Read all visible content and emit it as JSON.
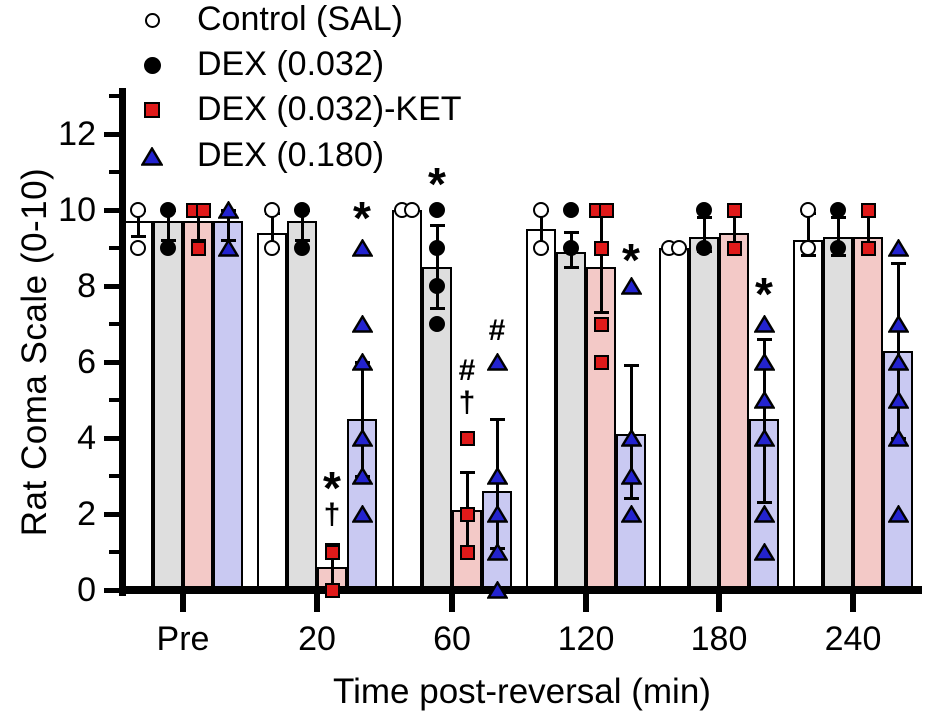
{
  "figure": {
    "background": "#FFFFFF"
  },
  "chart_data": {
    "type": "bar",
    "title": "",
    "xlabel": "Time post-reversal (min)",
    "ylabel": "Rat Coma Scale (0-10)",
    "ylim": [
      0,
      13.4
    ],
    "ytick_major": [
      0,
      2,
      4,
      6,
      8,
      10,
      12
    ],
    "ytick_minor": [
      1,
      3,
      5,
      7,
      9,
      11,
      13
    ],
    "categories": [
      "Pre",
      "20",
      "60",
      "120",
      "180",
      "240"
    ],
    "grid": false,
    "legend_position": "top-left",
    "colors": {
      "axis": "#000000",
      "control_bar": "#FFFFFF",
      "dex032_bar": "#DEDEDE",
      "ket_bar": "#F3C9C7",
      "dex180_bar": "#C9C9F2",
      "control_marker": "#FFFFFF",
      "dex032_marker": "#000000",
      "ket_marker": "#E01A1A",
      "dex180_marker": "#2323CF"
    },
    "legend": [
      {
        "label": "Control (SAL)",
        "marker": "open-circle"
      },
      {
        "label": "DEX (0.032)",
        "marker": "filled-circle"
      },
      {
        "label": "DEX (0.032)-KET",
        "marker": "filled-square"
      },
      {
        "label": "DEX (0.180)",
        "marker": "filled-triangle"
      }
    ],
    "series": [
      {
        "name": "Control (SAL)",
        "marker": "open-circle",
        "marker_color": "#FFFFFF",
        "bar_color": "#FFFFFF",
        "bars": [
          {
            "mean": 9.7,
            "err": [
              9.3,
              10.0
            ],
            "points": [
              10,
              9
            ],
            "sym": []
          },
          {
            "mean": 9.4,
            "err": [
              9.0,
              9.9
            ],
            "points": [
              10,
              9
            ],
            "sym": []
          },
          {
            "mean": 10.0,
            "err": null,
            "points": [
              10,
              10
            ],
            "sym": []
          },
          {
            "mean": 9.5,
            "err": [
              9.0,
              10.0
            ],
            "points": [
              10,
              9
            ],
            "sym": []
          },
          {
            "mean": 9.0,
            "err": null,
            "points": [
              9,
              9
            ],
            "sym": []
          },
          {
            "mean": 9.2,
            "err": [
              8.8,
              9.9
            ],
            "points": [
              10,
              9
            ],
            "sym": []
          }
        ]
      },
      {
        "name": "DEX (0.032)",
        "marker": "filled-circle",
        "marker_color": "#000000",
        "bar_color": "#DEDEDE",
        "bars": [
          {
            "mean": 9.7,
            "err": [
              9.2,
              10.0
            ],
            "points": [
              10,
              9
            ],
            "sym": []
          },
          {
            "mean": 9.7,
            "err": [
              9.2,
              10.0
            ],
            "points": [
              10,
              9
            ],
            "sym": []
          },
          {
            "mean": 8.5,
            "err": [
              7.4,
              9.6
            ],
            "points": [
              10,
              9,
              8,
              7
            ],
            "sym": [
              {
                "glyph": "*",
                "value": 10.6
              }
            ]
          },
          {
            "mean": 8.9,
            "err": [
              8.5,
              9.4
            ],
            "points": [
              10,
              9
            ],
            "sym": []
          },
          {
            "mean": 9.3,
            "err": [
              8.9,
              9.8
            ],
            "points": [
              10,
              9
            ],
            "sym": []
          },
          {
            "mean": 9.3,
            "err": [
              8.8,
              9.8
            ],
            "points": [
              10,
              9
            ],
            "sym": []
          }
        ]
      },
      {
        "name": "DEX (0.032)-KET",
        "marker": "filled-square",
        "marker_color": "#E01A1A",
        "bar_color": "#F3C9C7",
        "bars": [
          {
            "mean": 9.7,
            "err": [
              9.2,
              10.0
            ],
            "points": [
              10,
              10,
              9
            ],
            "sym": []
          },
          {
            "mean": 0.6,
            "err": [
              0.0,
              1.2
            ],
            "points": [
              1,
              0
            ],
            "sym": [
              {
                "glyph": "*",
                "value": 2.6
              },
              {
                "glyph": "†",
                "value": 1.95
              }
            ]
          },
          {
            "mean": 2.1,
            "err": [
              1.1,
              3.1
            ],
            "points": [
              4,
              2,
              1
            ],
            "sym": [
              {
                "glyph": "#",
                "value": 5.75
              },
              {
                "glyph": "†",
                "value": 4.9
              }
            ]
          },
          {
            "mean": 8.5,
            "err": [
              7.3,
              9.9
            ],
            "points": [
              10,
              10,
              9,
              7,
              6
            ],
            "sym": []
          },
          {
            "mean": 9.4,
            "err": [
              8.9,
              10.0
            ],
            "points": [
              10,
              9
            ],
            "sym": []
          },
          {
            "mean": 9.3,
            "err": [
              8.9,
              9.9
            ],
            "points": [
              10,
              9
            ],
            "sym": []
          }
        ]
      },
      {
        "name": "DEX (0.180)",
        "marker": "filled-triangle",
        "marker_color": "#2323CF",
        "bar_color": "#C9C9F2",
        "bars": [
          {
            "mean": 9.7,
            "err": [
              9.2,
              10.0
            ],
            "points": [
              10,
              9
            ],
            "sym": []
          },
          {
            "mean": 4.5,
            "err": [
              3.0,
              6.0
            ],
            "points": [
              9,
              7,
              6,
              4,
              3,
              2
            ],
            "sym": [
              {
                "glyph": "*",
                "value": 9.7
              }
            ]
          },
          {
            "mean": 2.6,
            "err": [
              1.1,
              4.5
            ],
            "points": [
              6,
              3,
              2,
              1,
              0
            ],
            "sym": [
              {
                "glyph": "#",
                "value": 6.8
              }
            ]
          },
          {
            "mean": 4.1,
            "err": [
              2.4,
              5.9
            ],
            "points": [
              8,
              4,
              3,
              2
            ],
            "sym": [
              {
                "glyph": "*",
                "value": 8.6
              }
            ]
          },
          {
            "mean": 4.5,
            "err": [
              2.3,
              6.6
            ],
            "points": [
              7,
              6,
              5,
              4,
              2,
              1
            ],
            "sym": [
              {
                "glyph": "*",
                "value": 7.7
              }
            ]
          },
          {
            "mean": 6.3,
            "err": [
              4.0,
              8.6
            ],
            "points": [
              9,
              7,
              6,
              5,
              4,
              2
            ],
            "sym": []
          }
        ]
      }
    ]
  }
}
